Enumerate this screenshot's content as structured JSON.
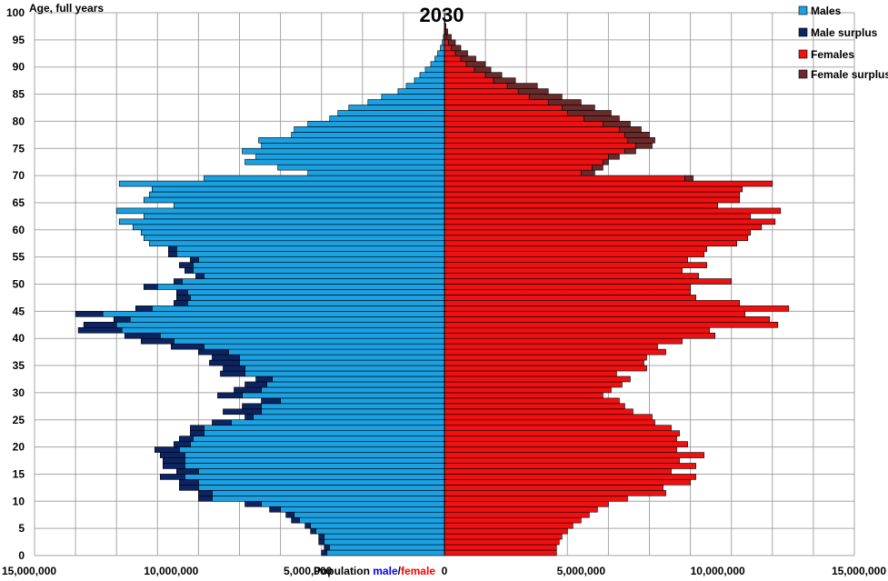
{
  "chart_data": {
    "type": "bar",
    "orientation": "horizontal-pyramid",
    "title": "2030",
    "ylabel": "Age, full years",
    "xlabel_prefix": "Population ",
    "xlabel_male": "male",
    "xlabel_slash": "/",
    "xlabel_female": "female",
    "xlim": [
      -15000000,
      15000000
    ],
    "ylim": [
      0,
      100
    ],
    "grid": true,
    "legend_position": "top-right",
    "x_tick_values": [
      -15000000,
      -10000000,
      -5000000,
      0,
      5000000,
      10000000,
      15000000
    ],
    "x_tick_labels": [
      "15,000,000",
      "10,000,000",
      "5,000,000",
      "0",
      "5,000,000",
      "10,000,000",
      "15,000,000"
    ],
    "y_tick_values": [
      0,
      5,
      10,
      15,
      20,
      25,
      30,
      35,
      40,
      45,
      50,
      55,
      60,
      65,
      70,
      75,
      80,
      85,
      90,
      95,
      100
    ],
    "y_tick_labels": [
      "0",
      "5",
      "10",
      "15",
      "20",
      "25",
      "30",
      "35",
      "40",
      "45",
      "50",
      "55",
      "60",
      "65",
      "70",
      "75",
      "80",
      "85",
      "90",
      "95",
      "100"
    ],
    "legend": [
      "Males",
      "Male surplus",
      "Females",
      "Female surplus"
    ],
    "colors": {
      "males": "#1ba1e2",
      "male_surplus": "#0c2461",
      "females": "#ee1111",
      "female_surplus": "#6b2a2a",
      "grid": "#a6a6a6",
      "bar_border": "#000000"
    },
    "ages": [
      0,
      1,
      2,
      3,
      4,
      5,
      6,
      7,
      8,
      9,
      10,
      11,
      12,
      13,
      14,
      15,
      16,
      17,
      18,
      19,
      20,
      21,
      22,
      23,
      24,
      25,
      26,
      27,
      28,
      29,
      30,
      31,
      32,
      33,
      34,
      35,
      36,
      37,
      38,
      39,
      40,
      41,
      42,
      43,
      44,
      45,
      46,
      47,
      48,
      49,
      50,
      51,
      52,
      53,
      54,
      55,
      56,
      57,
      58,
      59,
      60,
      61,
      62,
      63,
      64,
      65,
      66,
      67,
      68,
      69,
      70,
      71,
      72,
      73,
      74,
      75,
      76,
      77,
      78,
      79,
      80,
      81,
      82,
      83,
      84,
      85,
      86,
      87,
      88,
      89,
      90,
      91,
      92,
      93,
      94,
      95,
      96,
      97,
      98,
      99
    ],
    "series": [
      {
        "name": "Males",
        "values": [
          4300000,
          4200000,
          4400000,
          4400000,
          4700000,
          4900000,
          5300000,
          5500000,
          6000000,
          6700000,
          8500000,
          8500000,
          9000000,
          9000000,
          9500000,
          9000000,
          9500000,
          9500000,
          9500000,
          9700000,
          9300000,
          9200000,
          8800000,
          8800000,
          7800000,
          7000000,
          6700000,
          6700000,
          6000000,
          7400000,
          6700000,
          6500000,
          6300000,
          7300000,
          7300000,
          7500000,
          7500000,
          7900000,
          8800000,
          9900000,
          10400000,
          11800000,
          12000000,
          11500000,
          12500000,
          10700000,
          9400000,
          9300000,
          9400000,
          10500000,
          9600000,
          8800000,
          9200000,
          9200000,
          9000000,
          9800000,
          9800000,
          10800000,
          11000000,
          11100000,
          11400000,
          11900000,
          11000000,
          12000000,
          9900000,
          11000000,
          10800000,
          10700000,
          11900000,
          8800000,
          5000000,
          6100000,
          7300000,
          6900000,
          7400000,
          6700000,
          6800000,
          5600000,
          5500000,
          5000000,
          4200000,
          3900000,
          3500000,
          2800000,
          2300000,
          1700000,
          1400000,
          1100000,
          900000,
          700000,
          500000,
          350000,
          250000,
          150000,
          80000,
          40000,
          10000,
          5000,
          3000,
          1000
        ]
      },
      {
        "name": "Male surplus",
        "values": [
          200000,
          200000,
          200000,
          200000,
          200000,
          200000,
          300000,
          300000,
          400000,
          600000,
          500000,
          500000,
          700000,
          700000,
          900000,
          800000,
          800000,
          800000,
          900000,
          900000,
          600000,
          500000,
          500000,
          500000,
          700000,
          300000,
          1400000,
          700000,
          700000,
          900000,
          1000000,
          800000,
          600000,
          900000,
          800000,
          1100000,
          1000000,
          1100000,
          1200000,
          1200000,
          1300000,
          1600000,
          1200000,
          600000,
          1000000,
          600000,
          500000,
          500000,
          400000,
          500000,
          300000,
          300000,
          300000,
          500000,
          300000,
          300000,
          300000,
          0,
          0,
          0,
          0,
          0,
          0,
          0,
          0,
          0,
          0,
          0,
          0,
          0,
          0,
          0,
          0,
          0,
          0,
          0,
          0,
          0,
          0,
          0,
          0,
          0,
          0,
          0,
          0,
          0,
          0,
          0,
          0,
          0,
          0,
          0,
          0,
          0,
          0,
          0,
          0,
          0,
          0,
          0
        ]
      },
      {
        "name": "Females",
        "values": [
          4100000,
          4100000,
          4200000,
          4300000,
          4500000,
          4700000,
          5000000,
          5300000,
          5600000,
          6000000,
          6700000,
          8100000,
          8000000,
          9000000,
          9200000,
          8300000,
          9200000,
          8600000,
          9500000,
          8500000,
          8900000,
          8500000,
          8600000,
          8300000,
          7700000,
          7600000,
          6900000,
          6600000,
          6400000,
          5800000,
          6100000,
          6500000,
          6800000,
          6300000,
          7400000,
          7300000,
          7400000,
          8100000,
          7800000,
          8700000,
          9900000,
          9700000,
          12200000,
          11900000,
          11000000,
          12600000,
          10800000,
          9200000,
          9000000,
          9000000,
          10500000,
          9300000,
          8700000,
          9600000,
          8900000,
          9500000,
          9600000,
          10700000,
          11100000,
          11200000,
          11600000,
          12100000,
          11200000,
          12300000,
          10000000,
          10800000,
          10800000,
          10900000,
          12000000,
          8800000,
          5000000,
          5400000,
          5800000,
          6000000,
          6600000,
          7000000,
          6700000,
          6600000,
          6400000,
          5800000,
          5100000,
          4500000,
          4300000,
          3800000,
          3100000,
          2700000,
          2300000,
          1800000,
          1500000,
          1100000,
          800000,
          600000,
          400000,
          250000,
          150000,
          70000,
          40000,
          15000,
          5000,
          2000
        ]
      },
      {
        "name": "Female surplus",
        "values": [
          0,
          0,
          0,
          0,
          0,
          0,
          0,
          0,
          0,
          0,
          0,
          0,
          0,
          0,
          0,
          0,
          0,
          0,
          0,
          0,
          0,
          0,
          0,
          0,
          0,
          0,
          0,
          0,
          0,
          0,
          0,
          0,
          0,
          0,
          0,
          0,
          0,
          0,
          0,
          0,
          0,
          0,
          0,
          0,
          0,
          0,
          0,
          0,
          0,
          0,
          0,
          0,
          0,
          0,
          0,
          0,
          0,
          0,
          0,
          0,
          0,
          0,
          0,
          0,
          0,
          0,
          0,
          0,
          0,
          300000,
          500000,
          400000,
          200000,
          400000,
          400000,
          600000,
          1000000,
          900000,
          800000,
          1000000,
          1300000,
          1600000,
          1200000,
          1200000,
          1200000,
          1100000,
          1100000,
          800000,
          600000,
          600000,
          700000,
          550000,
          450000,
          350000,
          250000,
          180000,
          80000,
          40000,
          20000,
          10000
        ]
      }
    ]
  }
}
